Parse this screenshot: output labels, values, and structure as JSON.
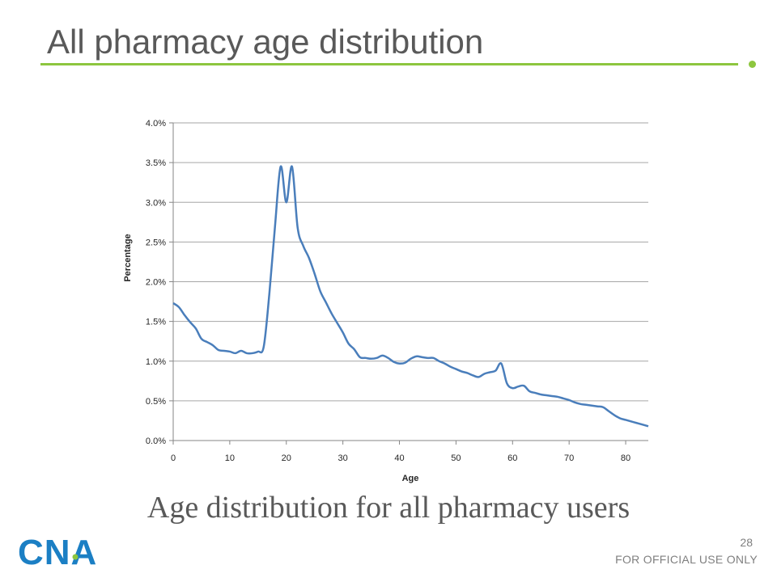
{
  "slide": {
    "title": "All pharmacy age distribution",
    "caption": "Age distribution for all pharmacy users",
    "page_number": "28",
    "footer_note": "FOR OFFICIAL USE ONLY",
    "logo_text": "CNA",
    "accent_color": "#8dc63f",
    "logo_color": "#1b7fc4"
  },
  "chart_data": {
    "type": "line",
    "title": "",
    "xlabel": "Age",
    "ylabel": "Percentage",
    "xlim": [
      0,
      84
    ],
    "ylim": [
      0,
      0.04
    ],
    "x_ticks": [
      0,
      10,
      20,
      30,
      40,
      50,
      60,
      70,
      80
    ],
    "y_ticks": [
      0,
      0.005,
      0.01,
      0.015,
      0.02,
      0.025,
      0.03,
      0.035,
      0.04
    ],
    "y_tick_labels": [
      "0.0%",
      "0.5%",
      "1.0%",
      "1.5%",
      "2.0%",
      "2.5%",
      "3.0%",
      "3.5%",
      "4.0%"
    ],
    "grid": "horizontal",
    "line_color": "#4a7ebb",
    "x": [
      0,
      1,
      2,
      3,
      4,
      5,
      6,
      7,
      8,
      9,
      10,
      11,
      12,
      13,
      14,
      15,
      16,
      17,
      18,
      19,
      20,
      21,
      22,
      23,
      24,
      25,
      26,
      27,
      28,
      29,
      30,
      31,
      32,
      33,
      34,
      35,
      36,
      37,
      38,
      39,
      40,
      41,
      42,
      43,
      44,
      45,
      46,
      47,
      48,
      49,
      50,
      51,
      52,
      53,
      54,
      55,
      56,
      57,
      58,
      59,
      60,
      61,
      62,
      63,
      64,
      65,
      66,
      67,
      68,
      69,
      70,
      71,
      72,
      73,
      74,
      75,
      76,
      77,
      78,
      79,
      80,
      81,
      82,
      83,
      84
    ],
    "values": [
      0.0173,
      0.0168,
      0.0158,
      0.0149,
      0.0141,
      0.0128,
      0.0124,
      0.012,
      0.0114,
      0.0113,
      0.0112,
      0.011,
      0.0113,
      0.011,
      0.011,
      0.0112,
      0.0118,
      0.0185,
      0.027,
      0.0345,
      0.03,
      0.0345,
      0.0268,
      0.0245,
      0.023,
      0.021,
      0.0188,
      0.0174,
      0.016,
      0.0148,
      0.0136,
      0.0122,
      0.0115,
      0.0105,
      0.0104,
      0.0103,
      0.0104,
      0.0107,
      0.0104,
      0.0099,
      0.0097,
      0.0098,
      0.0103,
      0.0106,
      0.0105,
      0.0104,
      0.0104,
      0.01,
      0.0097,
      0.0093,
      0.009,
      0.0087,
      0.0085,
      0.0082,
      0.008,
      0.0084,
      0.0086,
      0.0088,
      0.0097,
      0.0072,
      0.0066,
      0.0068,
      0.0069,
      0.0062,
      0.006,
      0.0058,
      0.0057,
      0.0056,
      0.0055,
      0.0053,
      0.0051,
      0.0048,
      0.0046,
      0.0045,
      0.0044,
      0.0043,
      0.0042,
      0.0037,
      0.0032,
      0.0028,
      0.0026,
      0.0024,
      0.0022,
      0.002,
      0.0018
    ]
  }
}
